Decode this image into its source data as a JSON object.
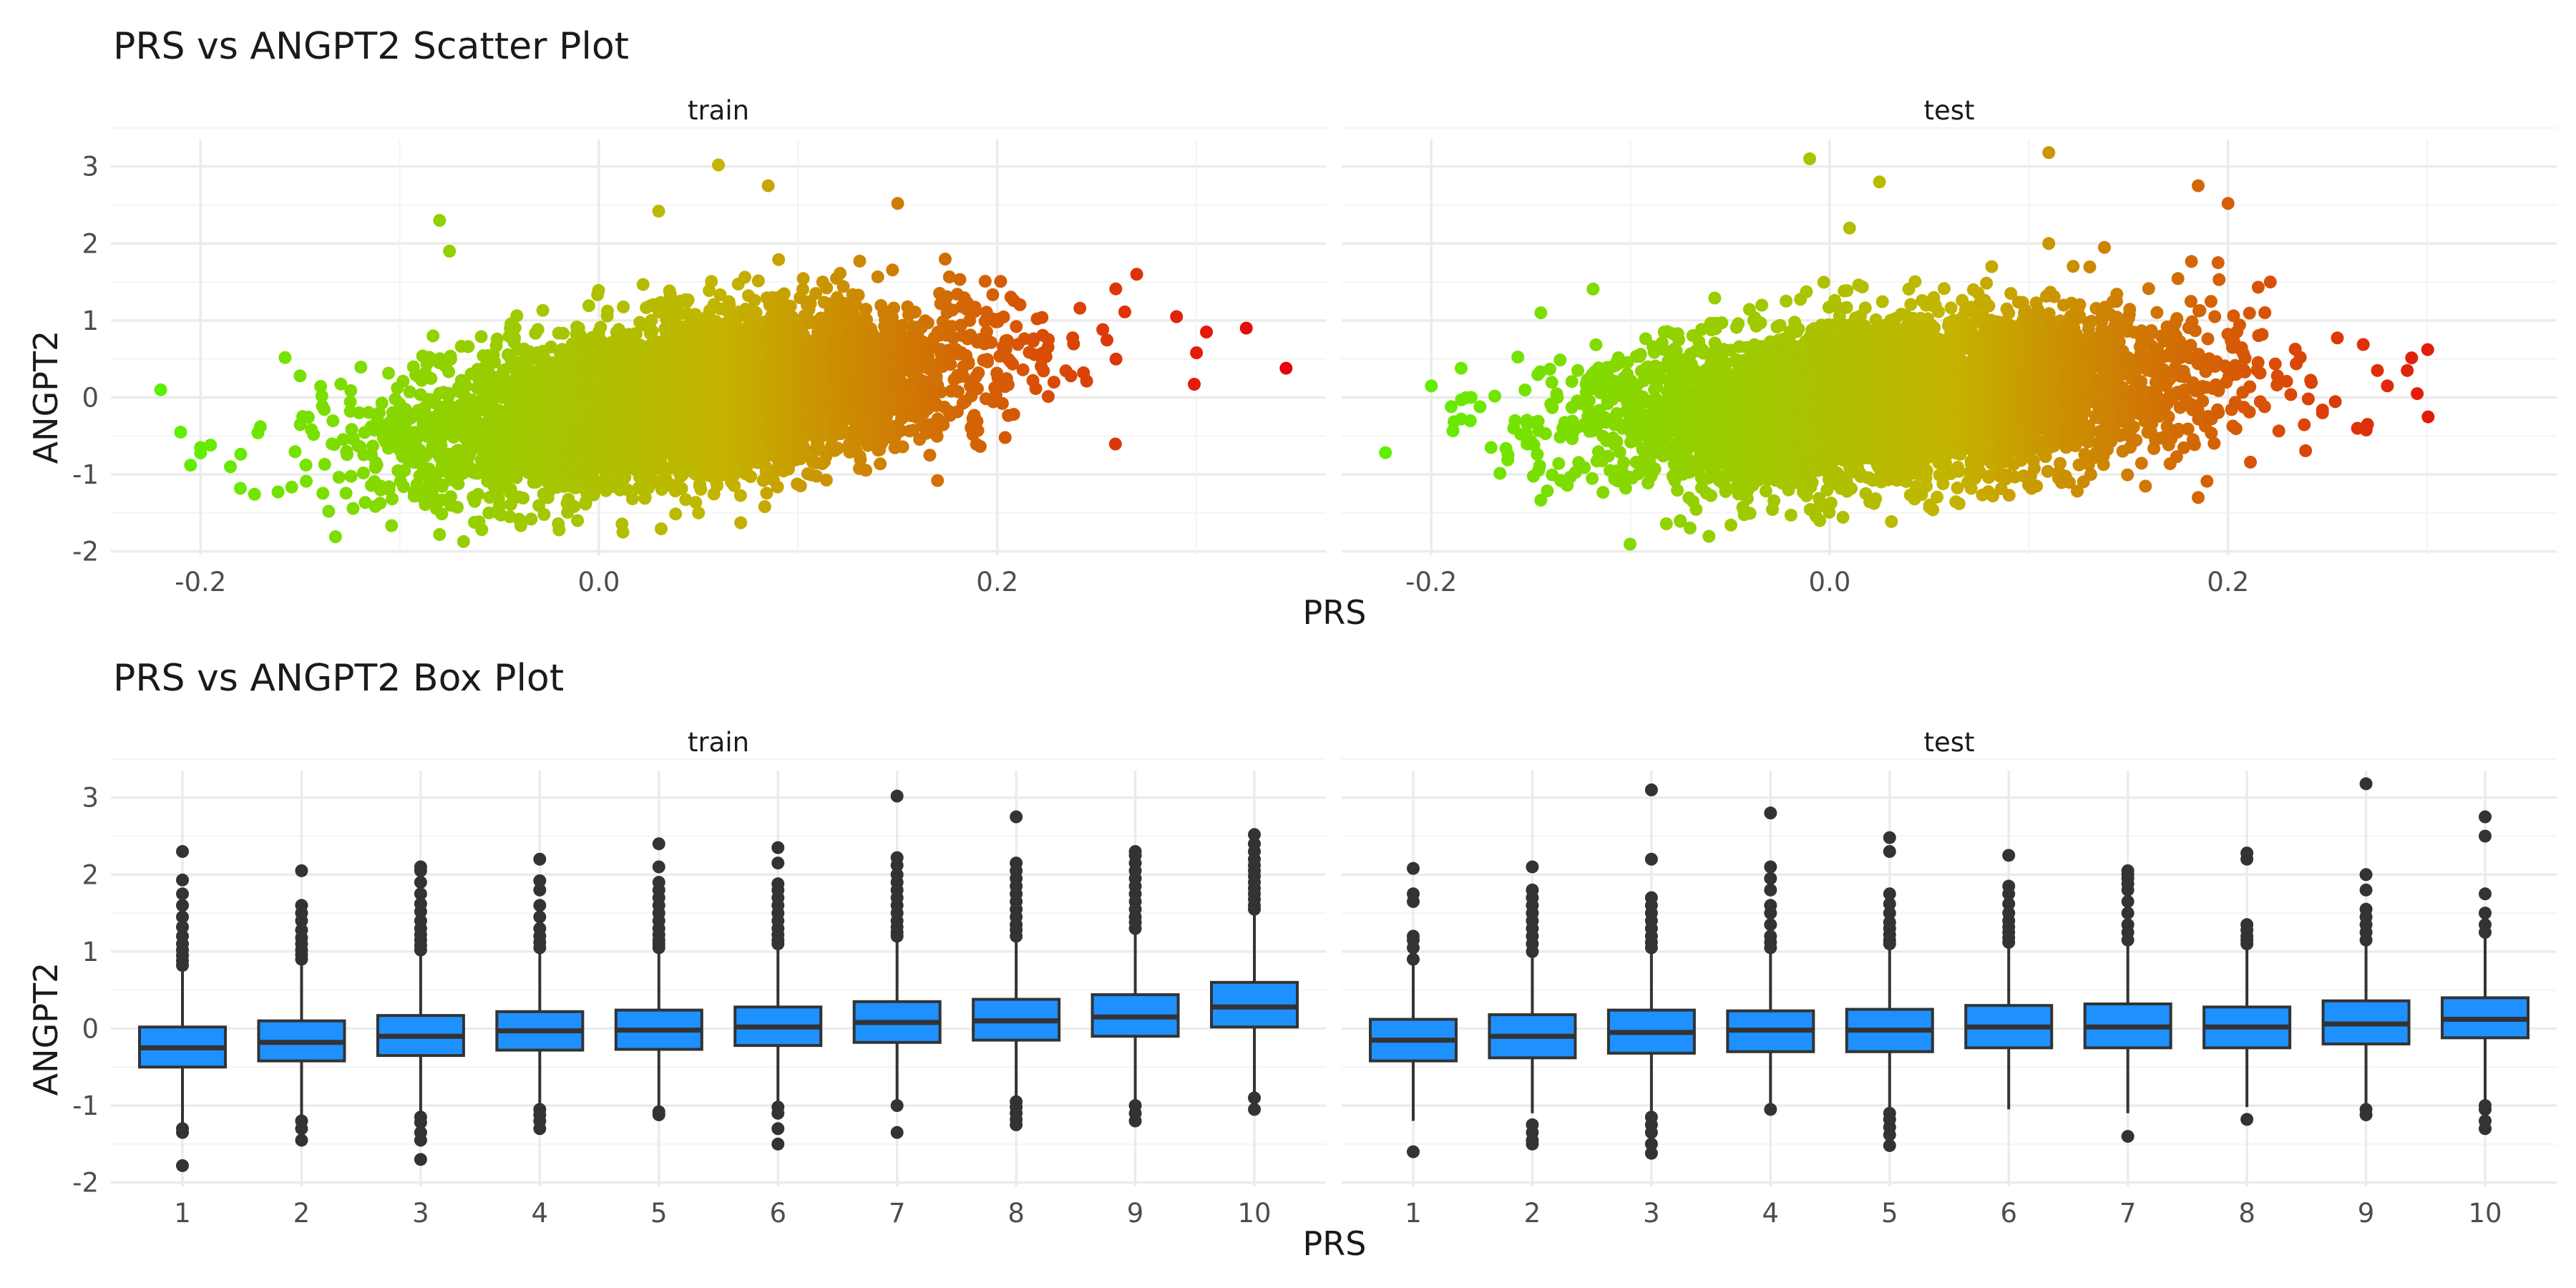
{
  "chart_data": [
    {
      "type": "scatter",
      "title": "PRS vs ANGPT2 Scatter Plot",
      "xlabel": "PRS",
      "ylabel": "ANGPT2",
      "xlim": [
        -0.245,
        0.365
      ],
      "ylim": [
        -2.05,
        3.35
      ],
      "x_ticks": [
        "-0.2",
        "0.0",
        "0.2"
      ],
      "x_tick_values": [
        -0.2,
        0.0,
        0.2
      ],
      "y_ticks": [
        "-2",
        "-1",
        "0",
        "1",
        "2",
        "3"
      ],
      "y_tick_values": [
        -2,
        -1,
        0,
        1,
        2,
        3
      ],
      "color_scale": {
        "low": "#5cf000",
        "mid": "#c4b400",
        "high": "#e8000c",
        "domain": [
          -0.22,
          0.345
        ]
      },
      "grid": true,
      "legend": "none",
      "panels": [
        {
          "label": "train",
          "cloud": {
            "x_mean": 0.045,
            "x_sd": 0.068,
            "y_mean": -0.02,
            "y_sd": 0.55,
            "correlation": 0.42
          },
          "outliers": [
            {
              "x": -0.22,
              "y": 0.1
            },
            {
              "x": -0.21,
              "y": -0.45
            },
            {
              "x": -0.205,
              "y": -0.88
            },
            {
              "x": -0.195,
              "y": -0.62
            },
            {
              "x": -0.185,
              "y": -0.9
            },
            {
              "x": -0.18,
              "y": -1.18
            },
            {
              "x": -0.17,
              "y": -0.38
            },
            {
              "x": -0.2,
              "y": -0.72
            },
            {
              "x": -0.15,
              "y": 0.28
            },
            {
              "x": -0.2,
              "y": -0.65
            },
            {
              "x": -0.08,
              "y": 2.3
            },
            {
              "x": -0.075,
              "y": 1.9
            },
            {
              "x": -0.08,
              "y": -1.78
            },
            {
              "x": -0.02,
              "y": -1.72
            },
            {
              "x": 0.03,
              "y": 2.42
            },
            {
              "x": 0.06,
              "y": 3.02
            },
            {
              "x": 0.085,
              "y": 2.75
            },
            {
              "x": 0.15,
              "y": 2.52
            },
            {
              "x": 0.05,
              "y": -1.5
            },
            {
              "x": 0.17,
              "y": -1.08
            },
            {
              "x": 0.27,
              "y": 1.6
            },
            {
              "x": 0.29,
              "y": 1.05
            },
            {
              "x": 0.3,
              "y": 0.58
            },
            {
              "x": 0.305,
              "y": 0.85
            },
            {
              "x": 0.325,
              "y": 0.9
            },
            {
              "x": 0.345,
              "y": 0.38
            }
          ]
        },
        {
          "label": "test",
          "cloud": {
            "x_mean": 0.03,
            "x_sd": 0.072,
            "y_mean": -0.03,
            "y_sd": 0.52,
            "correlation": 0.28
          },
          "outliers": [
            {
              "x": -0.2,
              "y": 0.15
            },
            {
              "x": -0.185,
              "y": 0.38
            },
            {
              "x": -0.19,
              "y": -0.12
            },
            {
              "x": -0.185,
              "y": -0.28
            },
            {
              "x": -0.18,
              "y": 0.0
            },
            {
              "x": -0.17,
              "y": -0.65
            },
            {
              "x": -0.155,
              "y": -0.48
            },
            {
              "x": -0.145,
              "y": 1.1
            },
            {
              "x": -0.075,
              "y": -1.6
            },
            {
              "x": -0.01,
              "y": 3.1
            },
            {
              "x": 0.025,
              "y": 2.8
            },
            {
              "x": 0.01,
              "y": 2.2
            },
            {
              "x": -0.005,
              "y": -1.6
            },
            {
              "x": 0.045,
              "y": -1.0
            },
            {
              "x": 0.065,
              "y": -1.38
            },
            {
              "x": 0.11,
              "y": 3.18
            },
            {
              "x": 0.185,
              "y": 2.75
            },
            {
              "x": 0.2,
              "y": 2.52
            },
            {
              "x": 0.11,
              "y": 2.0
            },
            {
              "x": 0.195,
              "y": 1.75
            },
            {
              "x": 0.185,
              "y": -1.3
            },
            {
              "x": 0.27,
              "y": -0.35
            },
            {
              "x": 0.275,
              "y": 0.35
            },
            {
              "x": 0.28,
              "y": 0.15
            },
            {
              "x": 0.29,
              "y": 0.35
            },
            {
              "x": 0.295,
              "y": 0.05
            },
            {
              "x": 0.265,
              "y": -0.4
            }
          ]
        }
      ]
    },
    {
      "type": "box",
      "title": "PRS vs ANGPT2 Box Plot",
      "xlabel": "PRS",
      "ylabel": "ANGPT2",
      "categories": [
        "1",
        "2",
        "3",
        "4",
        "5",
        "6",
        "7",
        "8",
        "9",
        "10"
      ],
      "ylim": [
        -2.05,
        3.35
      ],
      "y_ticks": [
        "-2",
        "-1",
        "0",
        "1",
        "2",
        "3"
      ],
      "y_tick_values": [
        -2,
        -1,
        0,
        1,
        2,
        3
      ],
      "box_color": "#1e90ff",
      "outline_color": "#333333",
      "grid": true,
      "legend": "none",
      "panels": [
        {
          "label": "train",
          "boxes": [
            {
              "q1": -0.5,
              "median": -0.25,
              "q3": 0.02,
              "lower": -1.25,
              "upper": 0.75,
              "outliers": [
                -1.3,
                -1.35,
                -1.78,
                0.82,
                0.88,
                0.95,
                1.02,
                1.1,
                1.2,
                1.32,
                1.45,
                1.6,
                1.75,
                1.93,
                2.3
              ]
            },
            {
              "q1": -0.42,
              "median": -0.18,
              "q3": 0.1,
              "lower": -1.15,
              "upper": 0.82,
              "outliers": [
                -1.2,
                -1.3,
                -1.45,
                0.9,
                0.96,
                1.02,
                1.1,
                1.18,
                1.28,
                1.4,
                1.5,
                1.6,
                2.05
              ]
            },
            {
              "q1": -0.35,
              "median": -0.1,
              "q3": 0.17,
              "lower": -1.1,
              "upper": 0.95,
              "outliers": [
                -1.15,
                -1.22,
                -1.35,
                -1.45,
                -1.7,
                1.02,
                1.08,
                1.15,
                1.22,
                1.3,
                1.4,
                1.52,
                1.62,
                1.75,
                1.9,
                2.05,
                2.1
              ]
            },
            {
              "q1": -0.28,
              "median": -0.03,
              "q3": 0.22,
              "lower": -1.0,
              "upper": 0.98,
              "outliers": [
                -1.05,
                -1.12,
                -1.2,
                -1.3,
                1.05,
                1.12,
                1.2,
                1.3,
                1.45,
                1.6,
                1.8,
                1.92,
                2.2
              ]
            },
            {
              "q1": -0.27,
              "median": -0.02,
              "q3": 0.24,
              "lower": -1.03,
              "upper": 1.0,
              "outliers": [
                -1.08,
                -1.12,
                1.05,
                1.1,
                1.15,
                1.22,
                1.3,
                1.4,
                1.5,
                1.6,
                1.7,
                1.8,
                1.9,
                2.1,
                2.4
              ]
            },
            {
              "q1": -0.22,
              "median": 0.02,
              "q3": 0.28,
              "lower": -0.98,
              "upper": 1.04,
              "outliers": [
                -1.02,
                -1.1,
                -1.3,
                -1.5,
                1.1,
                1.15,
                1.22,
                1.3,
                1.4,
                1.5,
                1.6,
                1.7,
                1.8,
                1.88,
                2.15,
                2.35
              ]
            },
            {
              "q1": -0.18,
              "median": 0.08,
              "q3": 0.35,
              "lower": -0.95,
              "upper": 1.12,
              "outliers": [
                -1.0,
                -1.35,
                1.2,
                1.25,
                1.32,
                1.4,
                1.5,
                1.6,
                1.7,
                1.8,
                1.9,
                2.0,
                2.12,
                2.22,
                3.02
              ]
            },
            {
              "q1": -0.15,
              "median": 0.1,
              "q3": 0.38,
              "lower": -0.92,
              "upper": 1.15,
              "outliers": [
                -0.95,
                -1.02,
                -1.1,
                -1.18,
                -1.25,
                1.2,
                1.28,
                1.35,
                1.45,
                1.55,
                1.65,
                1.75,
                1.85,
                1.95,
                2.05,
                2.15,
                2.75
              ]
            },
            {
              "q1": -0.1,
              "median": 0.15,
              "q3": 0.44,
              "lower": -0.95,
              "upper": 1.25,
              "outliers": [
                -1.0,
                -1.1,
                -1.2,
                1.3,
                1.38,
                1.45,
                1.55,
                1.65,
                1.75,
                1.85,
                1.95,
                2.05,
                2.15,
                2.25,
                2.3
              ]
            },
            {
              "q1": 0.02,
              "median": 0.28,
              "q3": 0.6,
              "lower": -0.85,
              "upper": 1.5,
              "outliers": [
                -0.9,
                -1.05,
                1.55,
                1.6,
                1.68,
                1.75,
                1.82,
                1.9,
                1.98,
                2.05,
                2.12,
                2.2,
                2.3,
                2.4,
                2.52
              ]
            }
          ]
        },
        {
          "label": "test",
          "boxes": [
            {
              "q1": -0.42,
              "median": -0.15,
              "q3": 0.12,
              "lower": -1.2,
              "upper": 0.85,
              "outliers": [
                -1.6,
                0.9,
                1.05,
                1.15,
                1.2,
                1.65,
                1.75,
                2.08
              ]
            },
            {
              "q1": -0.38,
              "median": -0.1,
              "q3": 0.18,
              "lower": -1.1,
              "upper": 0.95,
              "outliers": [
                -1.25,
                -1.35,
                -1.45,
                -1.5,
                1.0,
                1.1,
                1.2,
                1.3,
                1.4,
                1.5,
                1.6,
                1.7,
                1.8,
                2.1
              ]
            },
            {
              "q1": -0.32,
              "median": -0.05,
              "q3": 0.24,
              "lower": -1.1,
              "upper": 1.0,
              "outliers": [
                -1.15,
                -1.25,
                -1.35,
                -1.5,
                -1.62,
                1.05,
                1.12,
                1.2,
                1.3,
                1.4,
                1.5,
                1.6,
                1.7,
                2.2,
                3.1
              ]
            },
            {
              "q1": -0.3,
              "median": -0.02,
              "q3": 0.23,
              "lower": -1.02,
              "upper": 1.0,
              "outliers": [
                -1.05,
                1.05,
                1.12,
                1.2,
                1.35,
                1.5,
                1.6,
                1.8,
                1.95,
                2.1,
                2.8
              ]
            },
            {
              "q1": -0.3,
              "median": -0.02,
              "q3": 0.25,
              "lower": -1.05,
              "upper": 1.05,
              "outliers": [
                -1.1,
                -1.18,
                -1.28,
                -1.38,
                -1.52,
                1.1,
                1.15,
                1.22,
                1.3,
                1.38,
                1.5,
                1.62,
                1.75,
                2.3,
                2.48
              ]
            },
            {
              "q1": -0.25,
              "median": 0.02,
              "q3": 0.3,
              "lower": -1.05,
              "upper": 1.08,
              "outliers": [
                1.12,
                1.18,
                1.25,
                1.32,
                1.4,
                1.5,
                1.62,
                1.75,
                1.85,
                2.25
              ]
            },
            {
              "q1": -0.25,
              "median": 0.02,
              "q3": 0.32,
              "lower": -1.1,
              "upper": 1.1,
              "outliers": [
                -1.4,
                1.15,
                1.25,
                1.35,
                1.5,
                1.65,
                1.8,
                1.88,
                1.95,
                2.0,
                2.05
              ]
            },
            {
              "q1": -0.25,
              "median": 0.02,
              "q3": 0.28,
              "lower": -1.02,
              "upper": 1.05,
              "outliers": [
                -1.18,
                1.1,
                1.15,
                1.2,
                1.28,
                1.35,
                2.2,
                2.28
              ]
            },
            {
              "q1": -0.2,
              "median": 0.06,
              "q3": 0.36,
              "lower": -1.0,
              "upper": 1.1,
              "outliers": [
                -1.05,
                -1.12,
                1.15,
                1.25,
                1.35,
                1.45,
                1.55,
                1.8,
                2.0,
                3.18
              ]
            },
            {
              "q1": -0.12,
              "median": 0.12,
              "q3": 0.4,
              "lower": -0.95,
              "upper": 1.2,
              "outliers": [
                -1.0,
                -1.05,
                -1.2,
                -1.3,
                1.25,
                1.35,
                1.5,
                1.75,
                2.5,
                2.75
              ]
            }
          ]
        }
      ]
    }
  ]
}
